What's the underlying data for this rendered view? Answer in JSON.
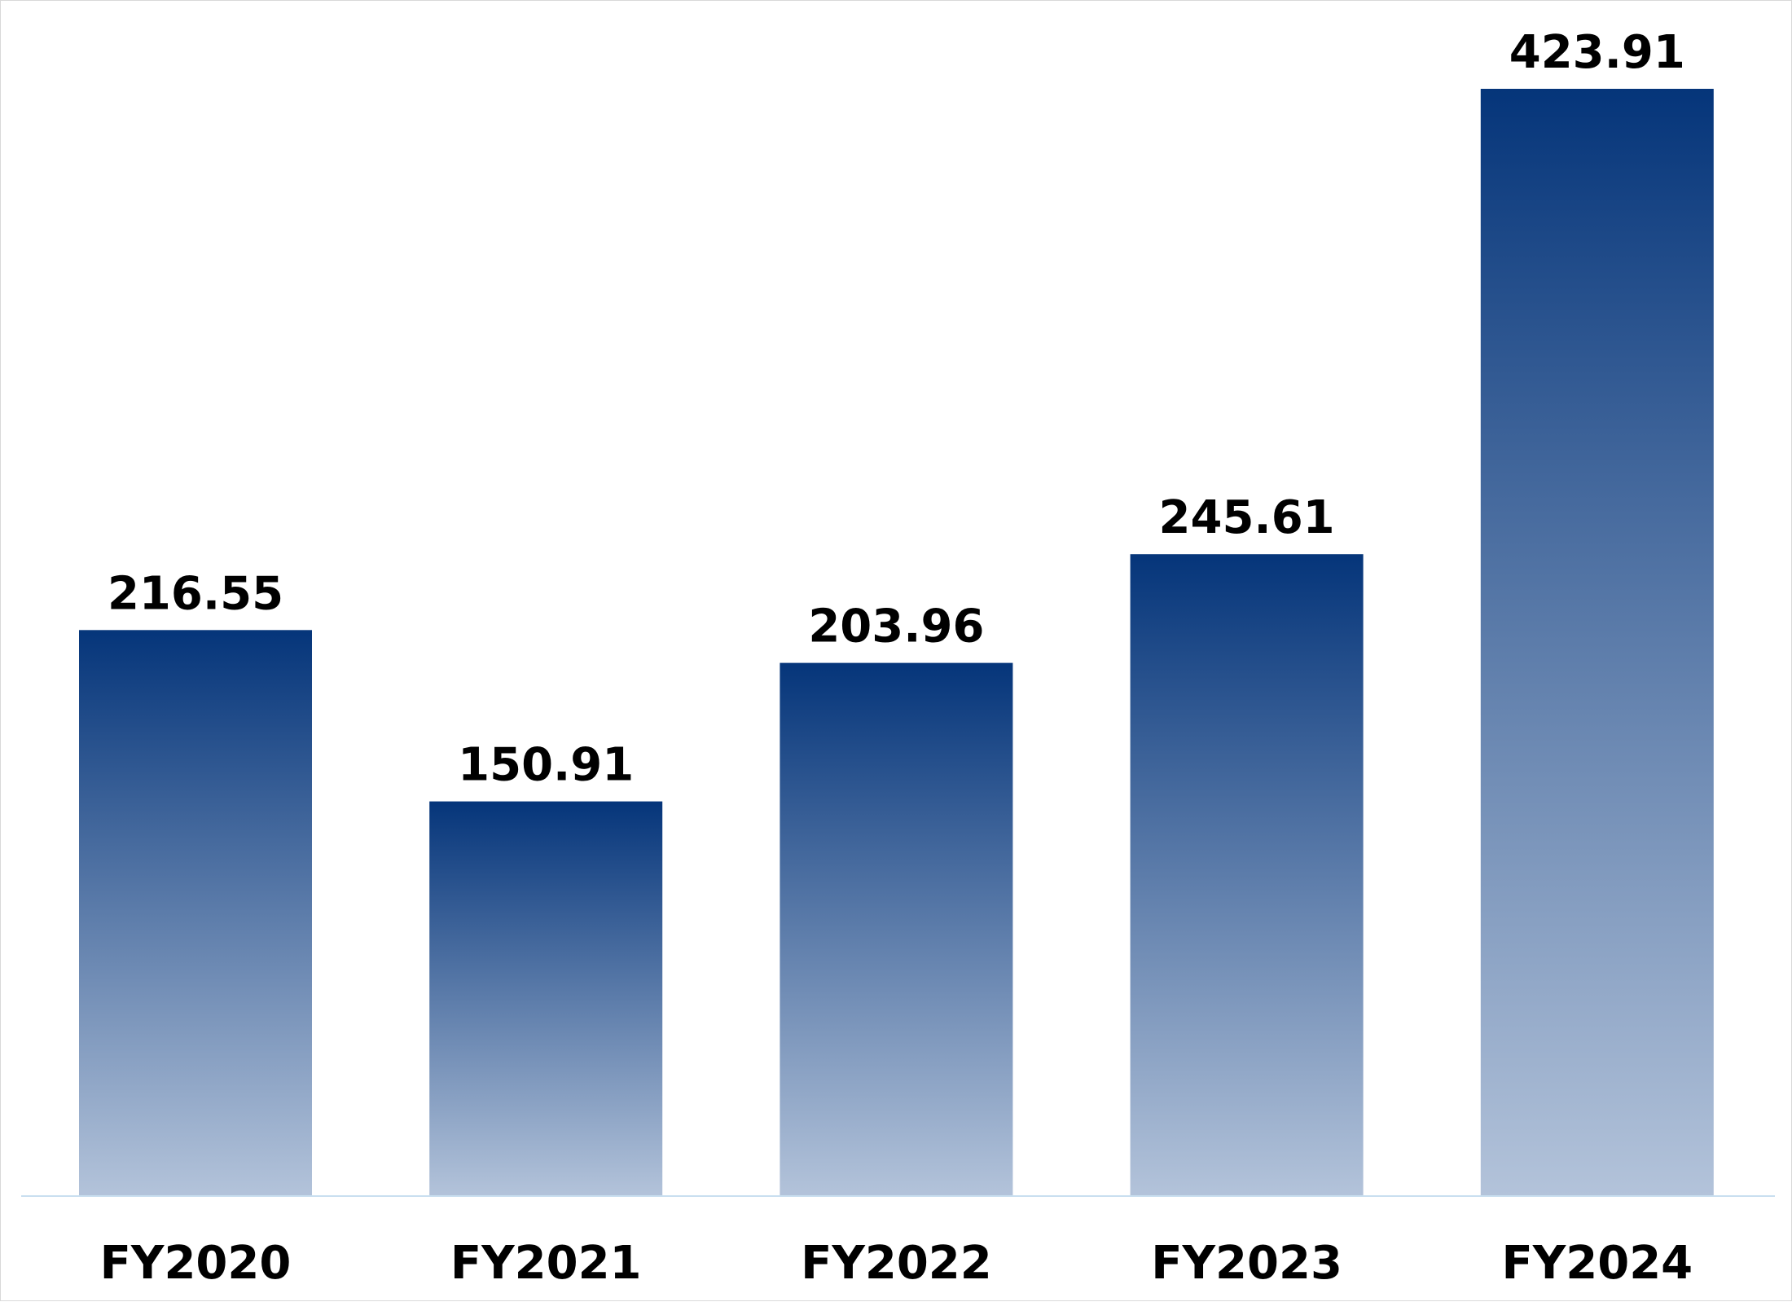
{
  "chart_data": {
    "type": "bar",
    "title": "",
    "xlabel": "",
    "ylabel": "",
    "categories": [
      "FY2020",
      "FY2021",
      "FY2022",
      "FY2023",
      "FY2024"
    ],
    "values": [
      216.55,
      150.91,
      203.96,
      245.61,
      423.91
    ],
    "data_labels": [
      "216.55",
      "150.91",
      "203.96",
      "245.61",
      "423.91"
    ],
    "ylim": [
      0,
      423.91
    ],
    "grid": false,
    "legend": "none",
    "colors": {
      "bar_top": "#05357a",
      "bar_bottom": "#b3c3da",
      "axis_line": "#c9dff0"
    }
  }
}
